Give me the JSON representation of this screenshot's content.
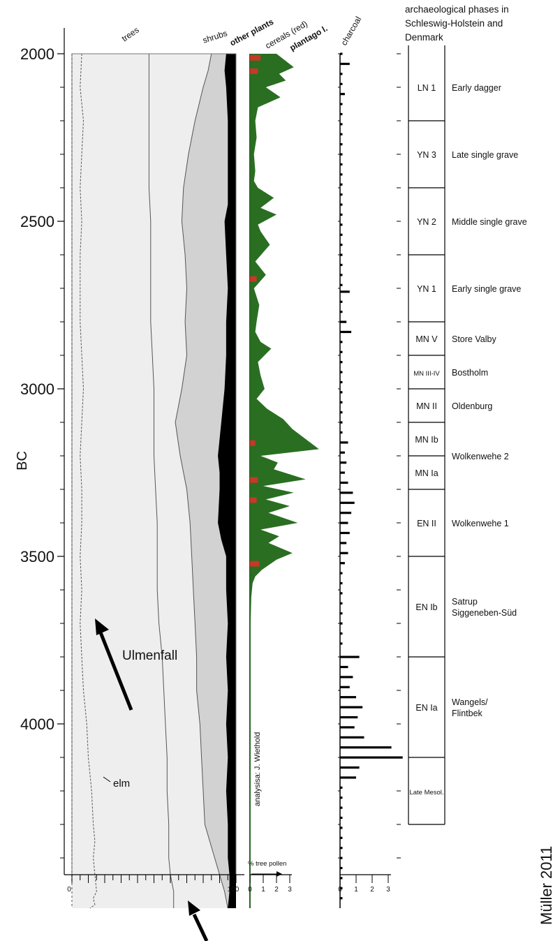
{
  "chart_data": {
    "type": "area",
    "ylabel": "BC",
    "ylim": [
      1950,
      4550
    ],
    "y_ticks": [
      2000,
      2500,
      3000,
      3500,
      4000
    ],
    "y_minor_ticks": [
      2100,
      2200,
      2300,
      2400,
      2600,
      2700,
      2800,
      2900,
      3100,
      3200,
      3300,
      3400,
      3600,
      3700,
      3800,
      3900,
      4100,
      4200,
      4300,
      4400
    ],
    "column_headers": [
      "trees",
      "shrubs",
      "other plants",
      "cereals (red)",
      "plantago l.",
      "charcoal"
    ],
    "pollen_axis": {
      "ticks": [
        "0",
        "100"
      ]
    },
    "cereal_axis": {
      "ticks": [
        "0",
        "1",
        "2",
        "3"
      ],
      "label": "% tree pollen"
    },
    "charcoal_axis": {
      "ticks": [
        "0",
        "1",
        "2",
        "3"
      ]
    },
    "colors": {
      "background": "#eeeeee",
      "shrubs": "#d2d2d2",
      "other_plants": "#000000",
      "plantago": "#2a6e22",
      "cereals": "#c43a26",
      "lines": "#555555"
    },
    "series": [
      {
        "name": "trees",
        "x": [
          47,
          47,
          47,
          47,
          47,
          48,
          48,
          48,
          48,
          49,
          50,
          50,
          50,
          51,
          52,
          52,
          52,
          53,
          55,
          56,
          57,
          58,
          58,
          59,
          59,
          60,
          62,
          62
        ],
        "y": [
          2000,
          2100,
          2200,
          2300,
          2400,
          2500,
          2600,
          2700,
          2800,
          2900,
          3000,
          3100,
          3200,
          3300,
          3400,
          3500,
          3600,
          3700,
          3800,
          3900,
          4000,
          4100,
          4200,
          4300,
          4400,
          4450,
          4500,
          4550
        ]
      },
      {
        "name": "shrubs",
        "x": [
          85,
          83,
          80,
          75,
          71,
          68,
          67,
          69,
          70,
          69,
          70,
          67,
          63,
          66,
          70,
          72,
          73,
          74,
          75,
          76,
          76,
          78,
          79,
          80,
          81,
          84,
          90,
          93,
          95
        ],
        "y": [
          2000,
          2050,
          2100,
          2200,
          2300,
          2400,
          2500,
          2600,
          2700,
          2800,
          2900,
          3000,
          3100,
          3200,
          3300,
          3400,
          3500,
          3600,
          3700,
          3800,
          3900,
          4000,
          4100,
          4200,
          4300,
          4350,
          4450,
          4500,
          4550
        ]
      },
      {
        "name": "other plants",
        "x": [
          94,
          93,
          94,
          95,
          95,
          95,
          95,
          93,
          94,
          95,
          94,
          94,
          93,
          91,
          89,
          90,
          90,
          89,
          91,
          94,
          94,
          95,
          94,
          95,
          94,
          95,
          94,
          95,
          95,
          95,
          96,
          96,
          95,
          96,
          96,
          96
        ],
        "y": [
          2000,
          2050,
          2100,
          2200,
          2300,
          2400,
          2450,
          2500,
          2600,
          2700,
          2800,
          2900,
          3000,
          3100,
          3200,
          3250,
          3300,
          3400,
          3450,
          3500,
          3600,
          3700,
          3800,
          3900,
          4000,
          4100,
          4200,
          4300,
          4350,
          4400,
          4450,
          4500,
          4550,
          4550,
          4550,
          4550
        ]
      },
      {
        "name": "elm",
        "x": [
          6,
          5,
          7,
          6,
          5,
          6,
          5,
          5,
          5,
          6,
          7,
          6,
          5,
          6,
          6,
          5,
          6,
          5,
          6,
          7,
          9,
          10,
          12,
          13,
          14,
          13,
          14,
          15,
          13,
          14,
          11
        ],
        "y": [
          2000,
          2100,
          2200,
          2300,
          2400,
          2500,
          2600,
          2700,
          2800,
          2900,
          3000,
          3100,
          3200,
          3300,
          3400,
          3500,
          3600,
          3700,
          3800,
          3900,
          4000,
          4100,
          4200,
          4300,
          4350,
          4400,
          4450,
          4500,
          4520,
          4540,
          4550
        ]
      },
      {
        "name": "plantago l.",
        "x": [
          2.0,
          3.3,
          2.2,
          2.7,
          1.2,
          2.3,
          0.6,
          0.4,
          0.5,
          0.3,
          0.4,
          0.3,
          0.6,
          1.8,
          0.8,
          2.0,
          0.6,
          0.8,
          1.5,
          0.4,
          1.2,
          0.3,
          0.7,
          0.5,
          0.4,
          0.8,
          1.6,
          0.6,
          0.8,
          1.1,
          0.5,
          1.3,
          2.5,
          3.2,
          5.2,
          0.8,
          2.1,
          1.8,
          4.2,
          1.0,
          3.3,
          1.2,
          3.0,
          1.4,
          3.6,
          0.8,
          2.2,
          1.4,
          3.2,
          2.0,
          0.9,
          0.4,
          0.2,
          0.1,
          0.05,
          0.05
        ],
        "y": [
          2000,
          2040,
          2060,
          2080,
          2100,
          2130,
          2160,
          2200,
          2250,
          2300,
          2350,
          2380,
          2400,
          2430,
          2460,
          2480,
          2510,
          2530,
          2570,
          2620,
          2660,
          2700,
          2750,
          2800,
          2830,
          2860,
          2880,
          2920,
          2960,
          3000,
          3030,
          3060,
          3090,
          3120,
          3180,
          3200,
          3220,
          3240,
          3270,
          3290,
          3310,
          3330,
          3350,
          3370,
          3400,
          3420,
          3440,
          3460,
          3490,
          3510,
          3540,
          3560,
          3580,
          3620,
          3700,
          4550
        ]
      },
      {
        "name": "cereals",
        "x": [
          0.8,
          0.6,
          0.5,
          0.4,
          0.6,
          0.5,
          0.7
        ],
        "y": [
          2010,
          2050,
          2670,
          3160,
          3270,
          3330,
          3520
        ]
      }
    ],
    "charcoal": {
      "y": [
        2000,
        2030,
        2060,
        2090,
        2120,
        2150,
        2180,
        2210,
        2240,
        2270,
        2300,
        2330,
        2360,
        2390,
        2420,
        2450,
        2480,
        2510,
        2540,
        2570,
        2600,
        2630,
        2660,
        2690,
        2710,
        2740,
        2770,
        2800,
        2830,
        2860,
        2890,
        2920,
        2950,
        2980,
        3010,
        3040,
        3070,
        3100,
        3130,
        3160,
        3190,
        3220,
        3250,
        3280,
        3310,
        3340,
        3370,
        3400,
        3430,
        3460,
        3490,
        3520,
        3550,
        3580,
        3610,
        3640,
        3670,
        3700,
        3730,
        3760,
        3800,
        3830,
        3860,
        3890,
        3920,
        3950,
        3980,
        4010,
        4040,
        4070,
        4100,
        4130,
        4160,
        4190,
        4220,
        4250,
        4280,
        4310,
        4340,
        4370,
        4400,
        4430,
        4460,
        4490,
        4520
      ],
      "x": [
        0.15,
        0.6,
        0.15,
        0.15,
        0.3,
        0.15,
        0.15,
        0.15,
        0.15,
        0.15,
        0.15,
        0.15,
        0.15,
        0.15,
        0.15,
        0.15,
        0.15,
        0.15,
        0.15,
        0.15,
        0.15,
        0.15,
        0.15,
        0.15,
        0.6,
        0.15,
        0.15,
        0.4,
        0.7,
        0.15,
        0.15,
        0.15,
        0.15,
        0.15,
        0.15,
        0.15,
        0.15,
        0.15,
        0.15,
        0.5,
        0.3,
        0.4,
        0.3,
        0.5,
        0.8,
        0.9,
        0.7,
        0.5,
        0.6,
        0.4,
        0.5,
        0.3,
        0.15,
        0.15,
        0.15,
        0.15,
        0.15,
        0.15,
        0.15,
        0.15,
        1.2,
        0.5,
        0.8,
        0.6,
        1.0,
        1.4,
        1.1,
        0.9,
        1.5,
        3.2,
        3.9,
        1.2,
        1.0,
        0.15,
        0.15,
        0.15,
        0.15,
        0.15,
        0.15,
        0.15,
        0.15,
        0.15,
        0.15,
        0.15,
        0.15
      ]
    },
    "annotations": {
      "ulmenfall": "Ulmenfall",
      "elm": "elm",
      "analysis": "analysisa: J. Wiethold",
      "credit": "Müller 2011"
    }
  },
  "phases": {
    "title": "archaeological phases in Schleswig-Holstein and Denmark",
    "items": [
      {
        "code": "LN 1",
        "name": "Early dagger",
        "start": 2000,
        "end": 2200
      },
      {
        "code": "YN 3",
        "name": "Late single grave",
        "start": 2200,
        "end": 2400
      },
      {
        "code": "YN 2",
        "name": "Middle single grave",
        "start": 2400,
        "end": 2600
      },
      {
        "code": "YN 1",
        "name": "Early single grave",
        "start": 2600,
        "end": 2800
      },
      {
        "code": "MN V",
        "name": "Store Valby",
        "start": 2800,
        "end": 2900
      },
      {
        "code": "MN III-IV",
        "name": "Bostholm",
        "start": 2900,
        "end": 3000
      },
      {
        "code": "MN II",
        "name": "Oldenburg",
        "start": 3000,
        "end": 3100
      },
      {
        "code": "MN Ib",
        "name": "",
        "start": 3100,
        "end": 3200
      },
      {
        "code": "MN Ia",
        "name": "Wolkenwehe 2",
        "start": 3200,
        "end": 3300
      },
      {
        "code": "EN II",
        "name": "Wolkenwehe 1",
        "start": 3300,
        "end": 3500
      },
      {
        "code": "EN Ib",
        "name": "Satrup Siggeneben-Süd",
        "start": 3500,
        "end": 3800
      },
      {
        "code": "EN Ia",
        "name": "Wangels/ Flintbek",
        "start": 3800,
        "end": 4100
      },
      {
        "code": "Late Mesol.",
        "name": "",
        "start": 4100,
        "end": 4300
      }
    ]
  }
}
